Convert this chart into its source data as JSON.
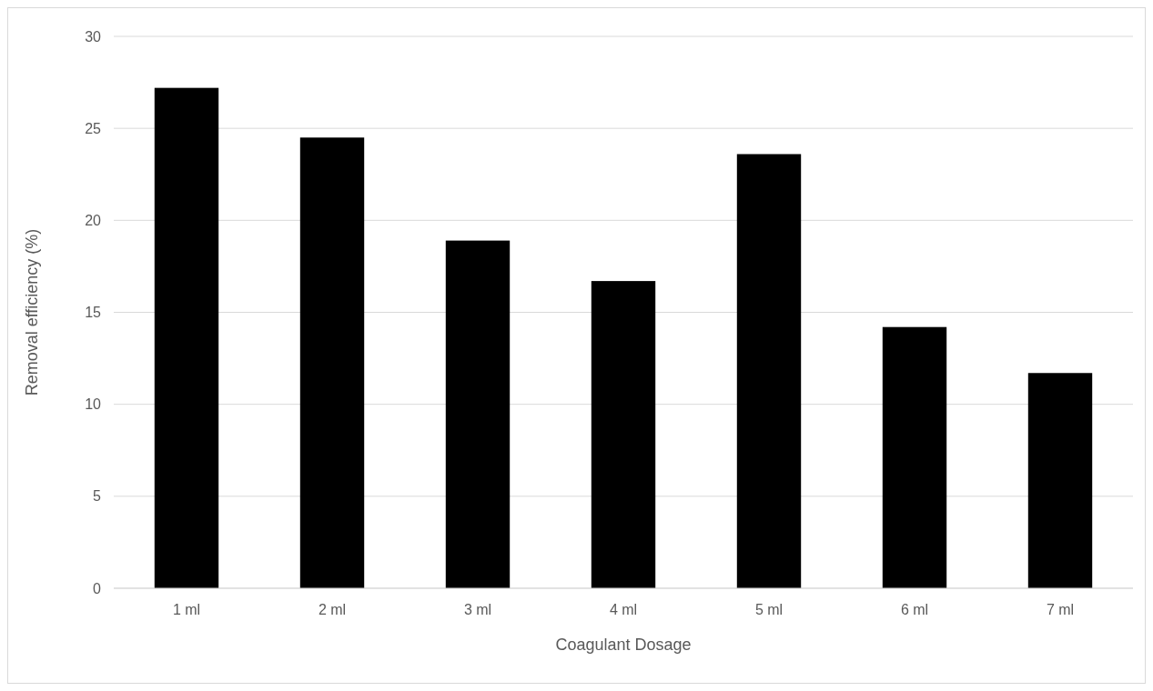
{
  "chart_data": {
    "type": "bar",
    "xlabel": "Coagulant Dosage",
    "ylabel": "Removal efficiency (%)",
    "categories": [
      "1 ml",
      "2 ml",
      "3 ml",
      "4 ml",
      "5 ml",
      "6 ml",
      "7 ml"
    ],
    "values": [
      27.2,
      24.5,
      18.9,
      16.7,
      23.6,
      14.2,
      11.7
    ],
    "color": "#000000",
    "ylim": [
      0,
      30
    ],
    "yticks": [
      0,
      5,
      10,
      15,
      20,
      25,
      30
    ],
    "grid": "y"
  }
}
